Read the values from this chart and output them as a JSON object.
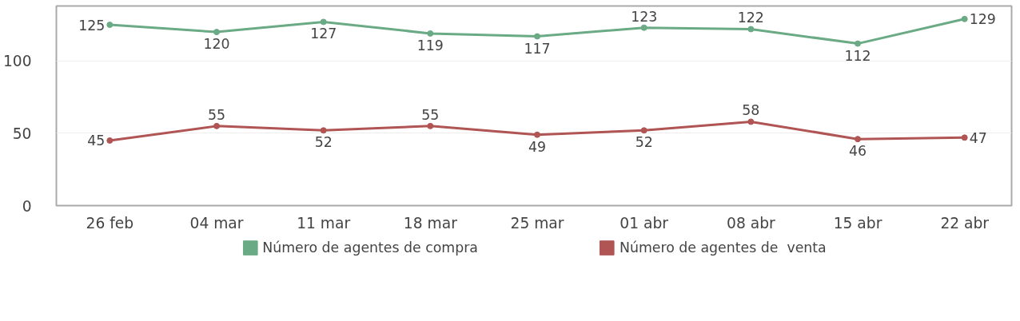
{
  "chart_data": {
    "type": "line",
    "categories": [
      "26 feb",
      "04 mar",
      "11 mar",
      "18 mar",
      "25 mar",
      "01 abr",
      "08 abr",
      "15 abr",
      "22 abr"
    ],
    "series": [
      {
        "name": "Número de agentes de compra",
        "color": "#6aaa84",
        "values": [
          125,
          120,
          127,
          119,
          117,
          123,
          122,
          112,
          129
        ]
      },
      {
        "name": "Número de agentes de  venta",
        "color": "#b05454",
        "values": [
          45,
          55,
          52,
          55,
          49,
          52,
          58,
          46,
          47
        ]
      }
    ],
    "ylim": [
      0,
      138
    ],
    "yticks": [
      0,
      50,
      100
    ],
    "grid": "y",
    "legend": "bottom",
    "marker": "circle",
    "line_style": "solid",
    "data_labels": true
  }
}
